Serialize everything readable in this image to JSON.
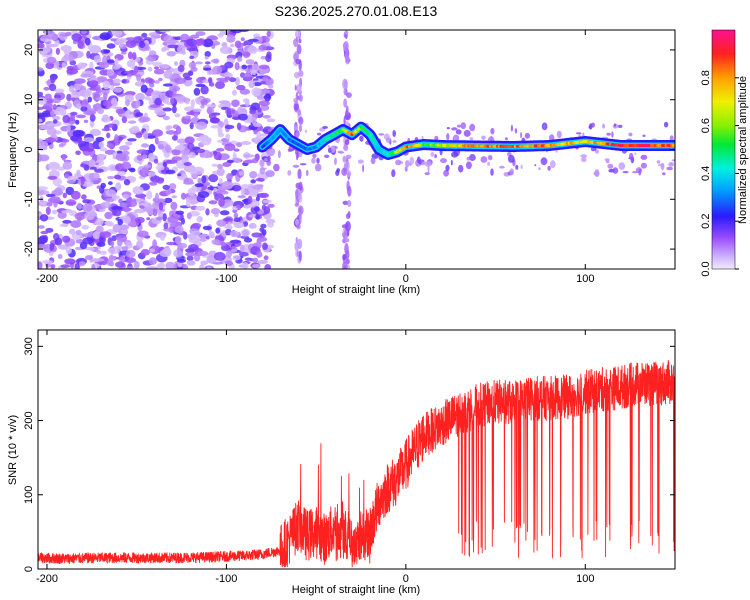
{
  "chart_data": [
    {
      "type": "heatmap",
      "title": "S236.2025.270.01.08.E13",
      "xlabel": "Height of straight line (km)",
      "ylabel": "Frequency (Hz)",
      "xlim": [
        -205,
        150
      ],
      "ylim": [
        -24,
        24
      ],
      "xticks": [
        -200,
        -100,
        0,
        100
      ],
      "yticks": [
        -20,
        -10,
        0,
        10,
        20
      ],
      "ridge": {
        "x": [
          -80,
          -75,
          -70,
          -65,
          -60,
          -55,
          -50,
          -45,
          -40,
          -35,
          -30,
          -25,
          -20,
          -15,
          -10,
          -5,
          0,
          10,
          20,
          40,
          60,
          80,
          100,
          120,
          150
        ],
        "freq": [
          0.5,
          2,
          4,
          2,
          1,
          0,
          0.5,
          2,
          3,
          4,
          3,
          4.5,
          3,
          0,
          -1,
          -0.5,
          0.5,
          1,
          0.8,
          0.7,
          0.6,
          0.8,
          1.6,
          0.8,
          0.8
        ],
        "amplitude": [
          0.25,
          0.35,
          0.35,
          0.3,
          0.25,
          0.3,
          0.35,
          0.45,
          0.5,
          0.6,
          0.9,
          0.55,
          0.5,
          0.4,
          0.45,
          0.7,
          0.9,
          0.6,
          0.65,
          0.9,
          0.9,
          0.85,
          0.75,
          0.95,
          0.9
        ]
      },
      "colorbar": {
        "label": "Normalized spectral amplitude",
        "range": [
          0.0,
          1.0
        ],
        "ticks": [
          0.0,
          0.2,
          0.4,
          0.6,
          0.8
        ],
        "tick_labels": [
          "0.0",
          "0.2",
          "0.4",
          "0.6",
          "0.8"
        ]
      },
      "colors": {
        "low_amplitude": "#7a2cff",
        "faint": "#d6c4ff",
        "ridge_low": "#1a20ff",
        "ridge_mid": "#22e6a0",
        "ridge_high": "#ff2020"
      }
    },
    {
      "type": "line",
      "xlabel": "Height of straight line (km)",
      "ylabel": "SNR (10 * v/v)",
      "xlim": [
        -205,
        150
      ],
      "ylim": [
        0,
        322
      ],
      "xticks": [
        -200,
        -100,
        0,
        100
      ],
      "yticks": [
        0,
        100,
        200,
        300
      ],
      "series": [
        {
          "name": "SNR",
          "color": "#ff2020",
          "x": [
            -205,
            -190,
            -170,
            -150,
            -130,
            -110,
            -90,
            -80,
            -70,
            -65,
            -60,
            -55,
            -50,
            -45,
            -40,
            -35,
            -30,
            -25,
            -20,
            -15,
            -10,
            -5,
            0,
            5,
            10,
            20,
            30,
            40,
            50,
            60,
            70,
            80,
            90,
            100,
            110,
            120,
            130,
            140,
            150
          ],
          "values": [
            15,
            14,
            15,
            15,
            15,
            16,
            18,
            20,
            25,
            40,
            60,
            45,
            50,
            40,
            55,
            60,
            35,
            45,
            50,
            90,
            110,
            120,
            140,
            160,
            180,
            195,
            210,
            220,
            225,
            225,
            230,
            230,
            232,
            238,
            242,
            245,
            250,
            250,
            252
          ]
        }
      ]
    }
  ]
}
